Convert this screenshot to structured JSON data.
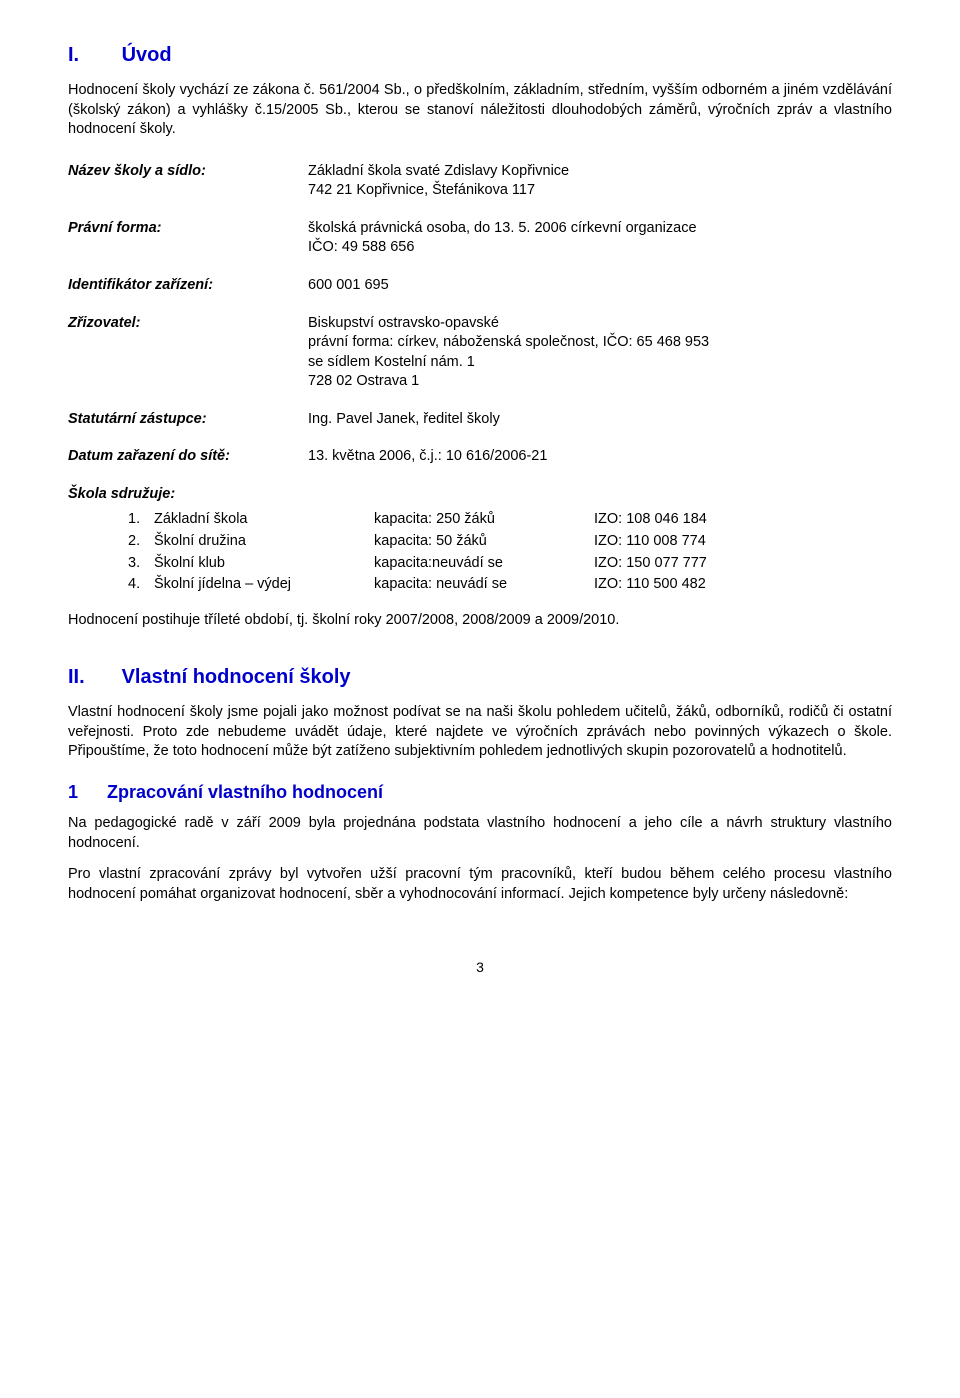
{
  "section1": {
    "roman": "I.",
    "title": "Úvod",
    "para1": "Hodnocení školy vychází ze zákona č. 561/2004 Sb., o předškolním, základním, středním, vyšším odborném a jiném vzdělávání (školský zákon) a vyhlášky č.15/2005 Sb., kterou se stanoví náležitosti dlouhodobých záměrů, výročních zpráv a vlastního hodnocení školy."
  },
  "kv": {
    "nazev_label": "Název školy a sídlo:",
    "nazev_val1": "Základní škola svaté Zdislavy Kopřivnice",
    "nazev_val2": "742 21 Kopřivnice, Štefánikova 117",
    "forma_label": "Právní forma:",
    "forma_val1": "školská právnická osoba, do 13. 5. 2006 církevní organizace",
    "forma_val2": "IČO: 49 588 656",
    "ident_label": "Identifikátor zařízení:",
    "ident_val": "600 001 695",
    "zriz_label": "Zřizovatel:",
    "zriz_val1": "Biskupství ostravsko-opavské",
    "zriz_val2": "právní forma: církev, náboženská společnost, IČO: 65 468 953",
    "zriz_val3": "se sídlem Kostelní nám. 1",
    "zriz_val4": "728 02 Ostrava 1",
    "stat_label": "Statutární zástupce:",
    "stat_val": "Ing. Pavel Janek, ředitel školy",
    "datum_label": "Datum zařazení do sítě:",
    "datum_val": "13. května 2006, č.j.: 10 616/2006-21"
  },
  "assoc": {
    "head": "Škola sdružuje:",
    "rows": [
      {
        "n": "1.",
        "name": "Základní škola",
        "cap": "kapacita: 250 žáků",
        "izo": "IZO: 108 046 184"
      },
      {
        "n": "2.",
        "name": "Školní družina",
        "cap": "kapacita: 50 žáků",
        "izo": "IZO: 110 008 774"
      },
      {
        "n": "3.",
        "name": "Školní klub",
        "cap": "kapacita:neuvádí se",
        "izo": "IZO: 150 077 777"
      },
      {
        "n": "4.",
        "name": "Školní jídelna – výdej",
        "cap": "kapacita: neuvádí se",
        "izo": "IZO: 110 500 482"
      }
    ]
  },
  "period_para": "Hodnocení postihuje tříleté období, tj. školní roky 2007/2008, 2008/2009 a 2009/2010.",
  "section2": {
    "roman": "II.",
    "title": "Vlastní hodnocení školy",
    "para": "Vlastní hodnocení školy jsme pojali jako možnost podívat se na naši školu pohledem učitelů, žáků, odborníků, rodičů či ostatní veřejnosti. Proto zde nebudeme uvádět údaje, které najdete ve výročních zprávách nebo povinných výkazech o škole. Připouštíme, že toto hodnocení může být zatíženo subjektivním pohledem jednotlivých skupin pozorovatelů a hodnotitelů."
  },
  "sub1": {
    "num": "1",
    "title": "Zpracování vlastního hodnocení",
    "para1": "Na pedagogické radě v září  2009 byla projednána podstata vlastního hodnocení a jeho cíle a návrh struktury vlastního hodnocení.",
    "para2": "Pro vlastní zpracování zprávy byl vytvořen užší pracovní tým pracovníků, kteří budou během celého procesu vlastního hodnocení pomáhat organizovat hodnocení, sběr a vyhodnocování informací. Jejich kompetence byly určeny následovně:"
  },
  "page_number": "3"
}
